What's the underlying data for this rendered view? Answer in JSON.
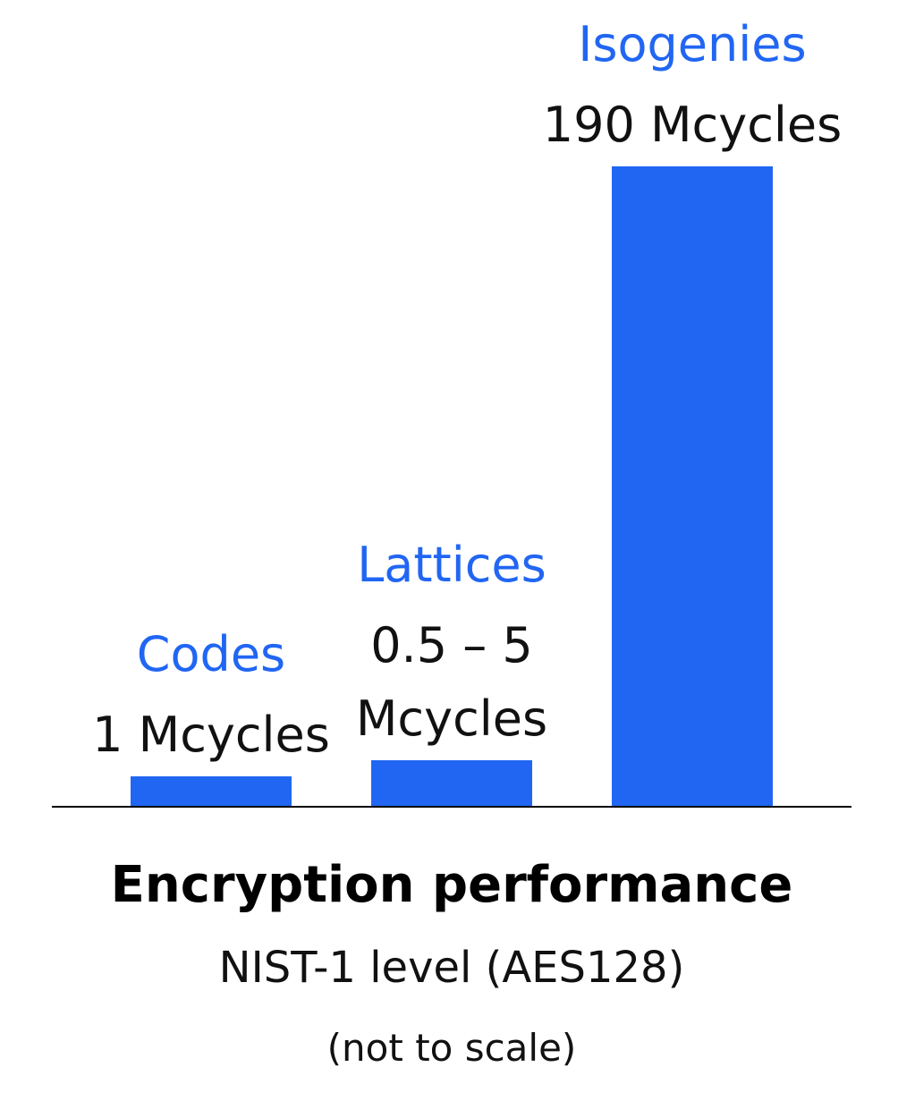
{
  "chart_data": {
    "type": "bar",
    "categories": [
      "Codes",
      "Lattices",
      "Isogenies"
    ],
    "series": [
      {
        "values": [
          1,
          2.75,
          190
        ],
        "value_labels": [
          [
            "1 Mcycles"
          ],
          [
            "0.5 – 5",
            "Mcycles"
          ],
          [
            "190 Mcycles"
          ]
        ]
      }
    ],
    "title": "Encryption performance",
    "subtitle": "NIST-1 level (AES128)",
    "note": "(not to scale)",
    "xlabel": "",
    "ylabel": "",
    "grid": false,
    "legend": "none",
    "scale": "not to scale",
    "colors": {
      "bar": "#2166f3",
      "category_label": "#2166f3",
      "axis": "#000000"
    }
  }
}
